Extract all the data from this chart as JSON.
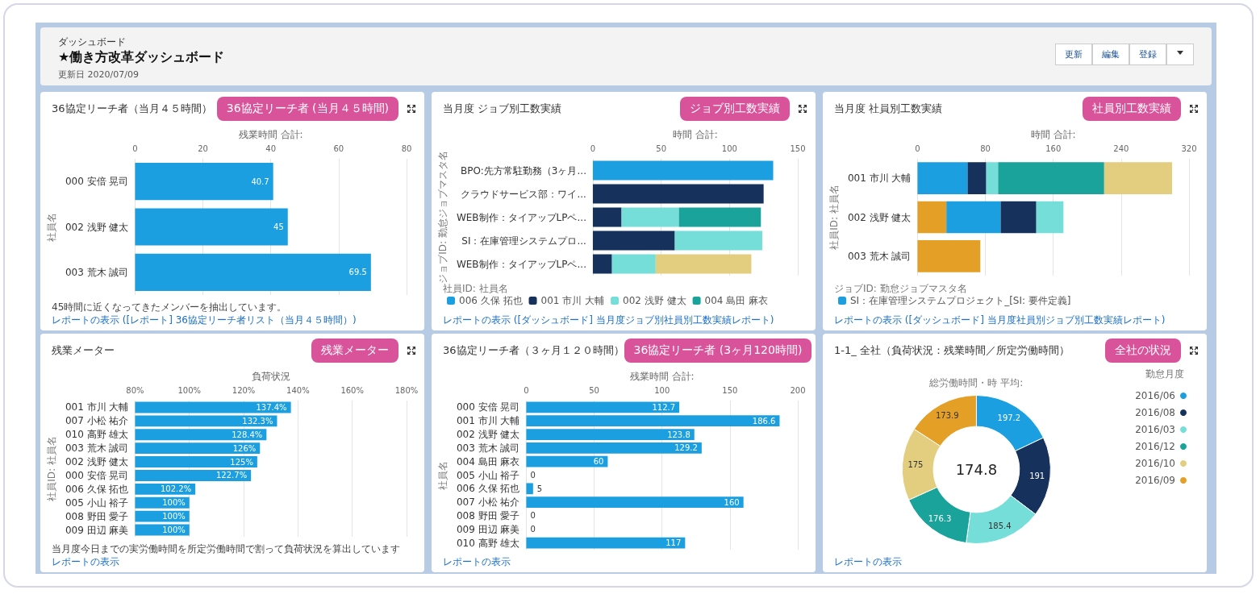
{
  "chart_data": [
    {
      "type": "other",
      "title": "★働き方改革ダッシュボード",
      "subtitle": "ダッシュボード",
      "annotations": [
        "更新日 2020/07/09",
        "更新",
        "編集",
        "登録"
      ]
    },
    {
      "type": "bar",
      "orientation": "horizontal",
      "title": "36協定リーチ者（当月４５時間）",
      "xlabel": "残業時間 合計:",
      "ylabel": "社員名",
      "categories": [
        "000 安倍 晃司",
        "002 浅野 健太",
        "003 荒木 誠司"
      ],
      "values": [
        40.7,
        45,
        69.5
      ],
      "color": "#1b9fe0",
      "data_labels": true,
      "xlim": [
        0,
        80
      ],
      "xticks": [
        0,
        20,
        40,
        60,
        80
      ],
      "grid": "x",
      "annotations": [
        "36協定リーチ者 (当月４５時間)",
        "45時間に近くなってきたメンバーを抽出しています。",
        "レポートの表示 ([レポート] 36協定リーチ者リスト（当月４５時間）)"
      ]
    },
    {
      "type": "bar",
      "orientation": "horizontal",
      "stacked": true,
      "title": "当月度 ジョブ別工数実績",
      "xlabel": "時間 合計:",
      "ylabel": "ジョブID: 勤怠ジョブマスタ名",
      "legend_title": "社員ID: 社員名",
      "legend": "bottom",
      "categories": [
        "BPO:先方常駐勤務（3ヶ月...",
        "クラウドサービス部：ワイ...",
        "WEB制作：タイアップLPペ...",
        "SI：在庫管理システムプロ...",
        "WEB制作：タイアップLPペ..."
      ],
      "series": [
        {
          "name": "006 久保 拓也",
          "color": "#1b9fe0",
          "values": [
            132,
            null,
            null,
            null,
            null
          ]
        },
        {
          "name": "001 市川 大輔",
          "color": "#16325c",
          "values": [
            null,
            125,
            21,
            60,
            14
          ]
        },
        {
          "name": "002 浅野 健太",
          "color": "#76ded9",
          "values": [
            null,
            null,
            42,
            64,
            32
          ]
        },
        {
          "name": "004 島田 麻衣",
          "color": "#1aa39a",
          "values": [
            null,
            null,
            60,
            null,
            null
          ]
        },
        {
          "color": "#e3cd7e",
          "values": [
            null,
            null,
            null,
            null,
            70
          ]
        }
      ],
      "xlim": [
        0,
        150
      ],
      "xticks": [
        0,
        50,
        100,
        150
      ],
      "grid": "x",
      "annotations": [
        "ジョブ別工数実績",
        "レポートの表示 ([ダッシュボード] 当月度ジョブ別社員別工数実績レポート)"
      ]
    },
    {
      "type": "bar",
      "orientation": "horizontal",
      "stacked": true,
      "title": "当月度 社員別工数実績",
      "xlabel": "時間 合計:",
      "ylabel": "社員ID: 社員名",
      "legend_title": "ジョブID: 勤怠ジョブマスタ名",
      "legend": "bottom",
      "categories": [
        "001 市川 大輔",
        "002 浅野 健太",
        "003 荒木 誠司"
      ],
      "series": [
        {
          "color": "#e49f27",
          "values": [
            null,
            34,
            74
          ]
        },
        {
          "name": "SI：在庫管理システムプロジェクト_[SI: 要件定義]",
          "color": "#1b9fe0",
          "values": [
            59,
            64,
            null
          ]
        },
        {
          "color": "#16325c",
          "values": [
            22,
            42,
            null
          ]
        },
        {
          "color": "#76ded9",
          "values": [
            14,
            32,
            null
          ]
        },
        {
          "color": "#1aa39a",
          "values": [
            125,
            null,
            null
          ]
        },
        {
          "color": "#e3cd7e",
          "values": [
            80,
            null,
            null
          ]
        }
      ],
      "xlim": [
        0,
        320
      ],
      "xticks": [
        0,
        80,
        160,
        240,
        320
      ],
      "grid": "x",
      "annotations": [
        "社員別工数実績",
        "レポートの表示 ([ダッシュボード] 当月度社員別ジョブ別工数実績レポート)"
      ]
    },
    {
      "type": "bar",
      "orientation": "horizontal",
      "title": "残業メーター",
      "xlabel": "負荷状況",
      "ylabel": "社員ID: 社員名",
      "categories": [
        "001 市川 大輔",
        "007 小松 祐介",
        "010 高野 雄太",
        "003 荒木 誠司",
        "002 浅野 健太",
        "000 安倍 晃司",
        "006 久保 拓也",
        "005 小山 裕子",
        "008 野田 愛子",
        "009 田辺 麻美"
      ],
      "values": [
        137.4,
        132.3,
        128.4,
        126,
        125,
        122.7,
        102.2,
        100,
        100,
        100
      ],
      "value_labels": [
        "137.4%",
        "132.3%",
        "128.4%",
        "126%",
        "125%",
        "122.7%",
        "102.2%",
        "100%",
        "100%",
        "100%"
      ],
      "color": "#1b9fe0",
      "xlim": [
        80,
        180
      ],
      "xticks": [
        {
          "value": 80,
          "label": "80%"
        },
        {
          "value": 100,
          "label": "100%"
        },
        {
          "value": 120,
          "label": "120%"
        },
        {
          "value": 140,
          "label": "140%"
        },
        {
          "value": 160,
          "label": "160%"
        },
        {
          "value": 180,
          "label": "180%"
        }
      ],
      "grid": "x",
      "annotations": [
        "残業メーター",
        "当月度今日までの実労働時間を所定労働時間で割って負荷状況を算出しています",
        "レポートの表示"
      ]
    },
    {
      "type": "bar",
      "orientation": "horizontal",
      "title": "36協定リーチ者（３ヶ月１２０時間）",
      "xlabel": "残業時間 合計:",
      "ylabel": "社員名",
      "categories": [
        "000 安倍 晃司",
        "001 市川 大輔",
        "002 浅野 健太",
        "003 荒木 誠司",
        "004 島田 麻衣",
        "005 小山 裕子",
        "006 久保 拓也",
        "007 小松 祐介",
        "008 野田 愛子",
        "009 田辺 麻美",
        "010 高野 雄太"
      ],
      "values": [
        112.7,
        186.6,
        123.8,
        129.2,
        60,
        0,
        5,
        160,
        0,
        0,
        117
      ],
      "color": "#1b9fe0",
      "data_labels": true,
      "xlim": [
        0,
        200
      ],
      "xticks": [
        0,
        50,
        100,
        150,
        200
      ],
      "grid": "x",
      "annotations": [
        "36協定リーチ者 (3ヶ月120時間)",
        "レポートの表示"
      ]
    },
    {
      "type": "donut",
      "title": "1-1_ 全社（負荷状況：残業時間／所定労働時間）",
      "subtitle": "総労働時間・時 平均:",
      "legend_title": "勤怠月度",
      "legend": "right",
      "categories": [
        "2016/06",
        "2016/08",
        "2016/03",
        "2016/12",
        "2016/10",
        "2016/09"
      ],
      "values": [
        197.2,
        191,
        185.4,
        176.3,
        175,
        173.9
      ],
      "colors": [
        "#1b9fe0",
        "#16325c",
        "#76ded9",
        "#1aa39a",
        "#e3cd7e",
        "#e49f27"
      ],
      "data_labels": true,
      "annotations": [
        "全社の状況",
        "174.8",
        "レポートの表示"
      ]
    }
  ]
}
